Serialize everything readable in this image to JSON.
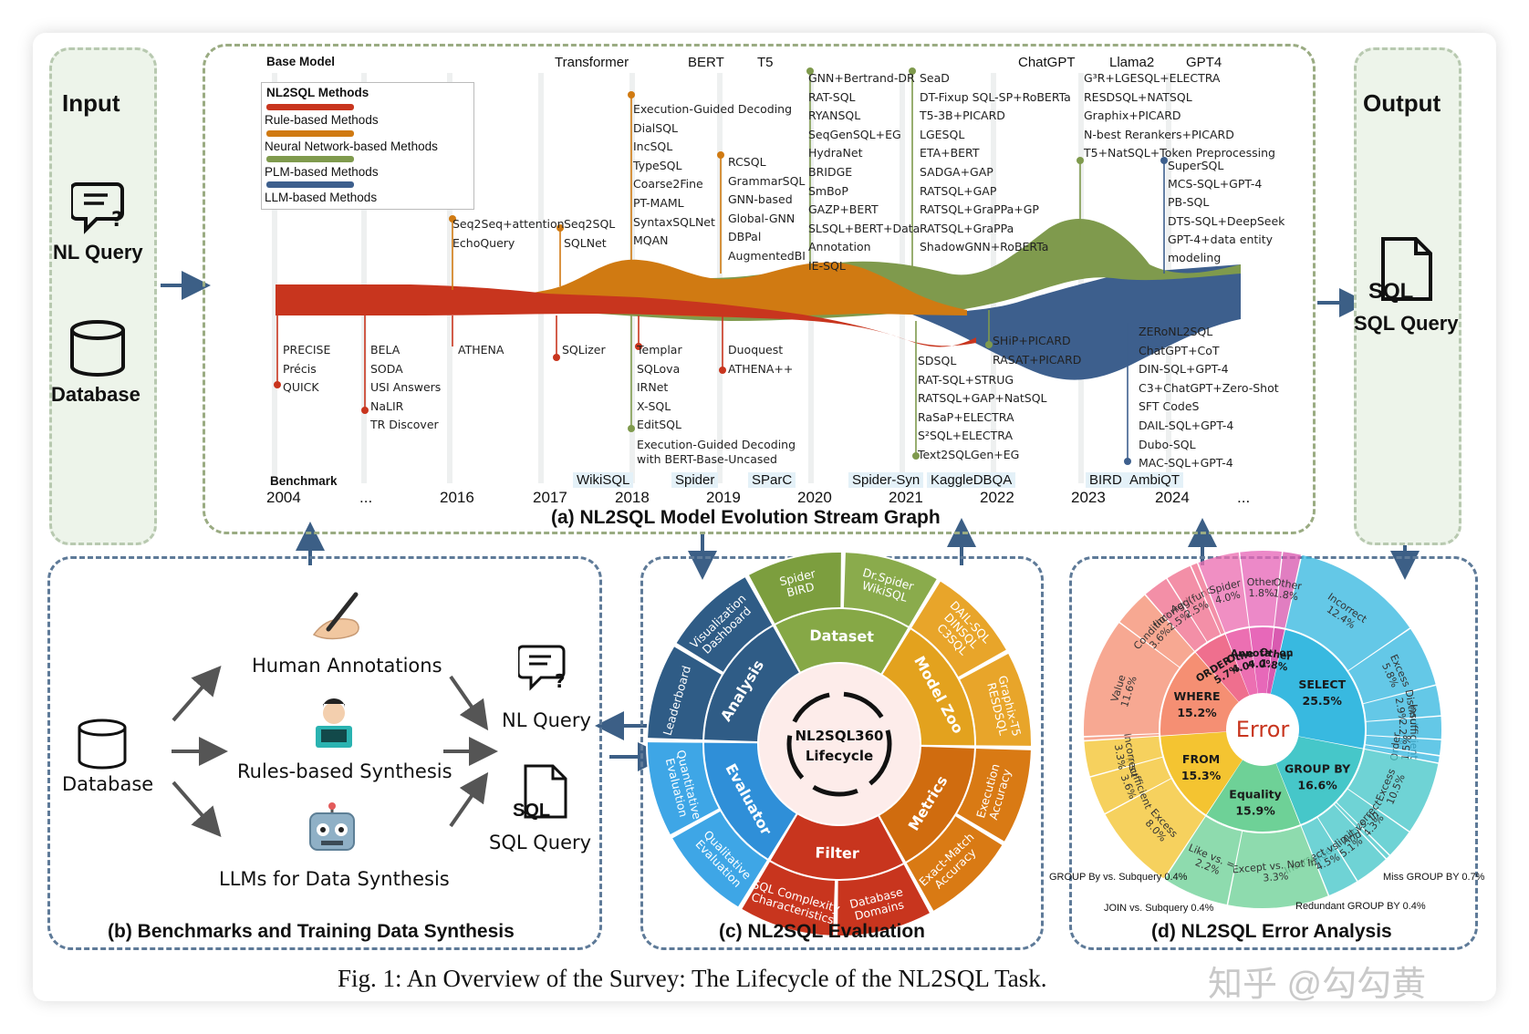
{
  "input": {
    "title": "Input",
    "nl_query": "NL Query",
    "database": "Database"
  },
  "output": {
    "title": "Output",
    "sql_icon": "SQL",
    "sql_query": "SQL Query"
  },
  "stream": {
    "base_model": "Base Model",
    "legend_title": "NL2SQL Methods",
    "legend": [
      {
        "label": "Rule-based Methods",
        "color": "#c8351e"
      },
      {
        "label": "Neural Network-based Methods",
        "color": "#d07a12"
      },
      {
        "label": "PLM-based Methods",
        "color": "#7f9a4d"
      },
      {
        "label": "LLM-based Methods",
        "color": "#3d5f8d"
      }
    ],
    "base_models": [
      "Transformer",
      "BERT",
      "T5",
      "ChatGPT",
      "Llama2",
      "GPT4"
    ],
    "benchmark_label": "Benchmark",
    "benchmarks": [
      "WikiSQL",
      "Spider",
      "SParC",
      "Spider-Syn",
      "KaggleDBQA",
      "BIRD",
      "AmbiQT"
    ],
    "years": [
      "2004",
      "...",
      "2016",
      "2017",
      "2018",
      "2019",
      "2020",
      "2021",
      "2022",
      "2023",
      "2024",
      "..."
    ],
    "title": "(a) NL2SQL Model Evolution Stream Graph",
    "groups": {
      "g_seq2seq": "Seq2Seq+attention\nEchoQuery",
      "g_seq2sql": "Seq2SQL\nSQLNet",
      "g_exec": "Execution-Guided Decoding\nDialSQL\nIncSQL\nTypeSQL\nCoarse2Fine\nPT-MAML\nSyntaxSQLNet\nMQAN",
      "g_rcsql": "RCSQL\nGrammarSQL\nGNN-based\nGlobal-GNN\nDBPal\nAugmentedBI",
      "g_gnn": "GNN+Bertrand-DR\nRAT-SQL\nRYANSQL\nSeqGenSQL+EG\nHydraNet\nBRIDGE\nSmBoP\nGAZP+BERT\nSLSQL+BERT+Data\nAnnotation\nIE-SQL",
      "g_sead": "SeaD\nDT-Fixup SQL-SP+RoBERTa\nT5-3B+PICARD\nLGESQL\nETA+BERT\nSADGA+GAP\nRATSQL+GAP\nRATSQL+GraPPa+GP\nRATSQL+GraPPa\nShadowGNN+RoBERTa",
      "g_g3r": "G³R+LGESQL+ELECTRA\nRESDSQL+NATSQL\nGraphix+PICARD\nN-best Rerankers+PICARD\nT5+NatSQL+Token Preprocessing",
      "g_superSQL": "SuperSQL\nMCS-SQL+GPT-4\nPB-SQL\nDTS-SQL+DeepSeek\nGPT-4+data entity\nmodeling",
      "g_precise": "PRECISE\nPrécis\nQUICK",
      "g_bela": "BELA\nSODA\nUSI Answers\nNaLIR\nTR Discover",
      "g_athena": "ATHENA",
      "g_sqlizer": "SQLizer",
      "g_templar": "Templar\nSQLova\nIRNet\nX-SQL\nEditSQL",
      "g_exec_bert": "Execution-Guided Decoding\nwith BERT-Base-Uncased",
      "g_duoquest": "Duoquest\nATHENA++",
      "g_sdsql": "SDSQL\nRAT-SQL+STRUG\nRATSQL+GAP+NatSQL\nRaSaP+ELECTRA\nS²SQL+ELECTRA\nText2SQLGen+EG",
      "g_ship": "SHiP+PICARD\nRASAT+PICARD",
      "g_zeronl": "ZERoNL2SQL\nChatGPT+CoT\nDIN-SQL+GPT-4\nC3+ChatGPT+Zero-Shot\nSFT CodeS\nDAIL-SQL+GPT-4\nDubo-SQL\nMAC-SQL+GPT-4"
    }
  },
  "bench": {
    "title": "(b) Benchmarks and Training Data Synthesis",
    "database": "Database",
    "human": "Human Annotations",
    "rules": "Rules-based Synthesis",
    "llms": "LLMs for Data Synthesis",
    "nl_query": "NL Query",
    "sql_icon": "SQL",
    "sql_query": "SQL Query"
  },
  "eval": {
    "title": "(c) NL2SQL Evaluation",
    "center": [
      "NL2SQL360",
      "Lifecycle"
    ],
    "inner": [
      "Dataset",
      "Model Zoo",
      "Metrics",
      "Filter",
      "Evaluator",
      "Analysis"
    ],
    "outer": [
      "Spider\nBIRD",
      "Dr.Spider\nWikiSQL",
      "DAIL-SQL\nDINSQL\nC3SQL",
      "Graphix-T5\nRESDSQL",
      "Execution\nAccuracy",
      "Exact-Match\nAccuracy",
      "Database\nDomains",
      "SQL Complexity\nCharacteristics",
      "Qualitative\nEvaluation",
      "Quantitative\nEvaluation",
      "Leaderboard",
      "Visualization\nDashboard"
    ]
  },
  "error": {
    "title": "(d) NL2SQL Error Analysis",
    "center": "Error",
    "inner": [
      {
        "label": "SELECT",
        "pct": "25.5%",
        "value": 25.5,
        "color": "#38b9e0"
      },
      {
        "label": "GROUP BY",
        "pct": "16.6%",
        "value": 16.6,
        "color": "#46c7c9"
      },
      {
        "label": "Equality",
        "pct": "15.9%",
        "value": 15.9,
        "color": "#6ed197"
      },
      {
        "label": "FROM",
        "pct": "15.3%",
        "value": 15.3,
        "color": "#f4c431"
      },
      {
        "label": "WHERE",
        "pct": "15.2%",
        "value": 15.2,
        "color": "#f58f73"
      },
      {
        "label": "ORDER BY",
        "pct": "5.7%",
        "value": 5.7,
        "color": "#ef6f8e"
      },
      {
        "label": "Other",
        "pct": "4.0%",
        "value": 4.0,
        "color": "#ec6fb2"
      },
      {
        "label": "Annotation",
        "pct": "4.0%",
        "value": 4.0,
        "color": "#e768b9"
      },
      {
        "label": "Other",
        "pct": "1.8%",
        "value": 1.8,
        "color": "#d95ab0"
      }
    ],
    "outer": [
      "Incorrect 12.4%",
      "Excess 5.8%",
      "Distinct 2.9%",
      "Insufficient 2.2%",
      "Order 1.5%",
      "Aggregation 0.7%",
      "Excess 10.5%",
      "Incorrect 4.3%",
      "Having 0.7%",
      "Order limit vs. In 5.1%",
      "Intersect vs. And 4.5%",
      "Except vs. Not In 3.3%",
      "Like vs. = 2.2%",
      "Excess 8.0%",
      "Insufficient 3.6%",
      "Incorrect 3.3%",
      "Join Type 0.4%",
      "Value 11.6%",
      "Condition 3.6%",
      "Incorrect 2.5%",
      "Agg(func 2.5%",
      "Desc-Asc 0.7%",
      "Spider 4.0%",
      "Other 1.8%"
    ],
    "notes": [
      "GROUP By vs. Subquery 0.4%",
      "JOIN vs. Subquery 0.4%",
      "Miss GROUP BY 0.7%",
      "Redundant GROUP BY 0.4%"
    ]
  },
  "caption": "Fig. 1: An Overview of the Survey: The Lifecycle of the NL2SQL Task.",
  "watermark": "知乎 @勾勾黄"
}
